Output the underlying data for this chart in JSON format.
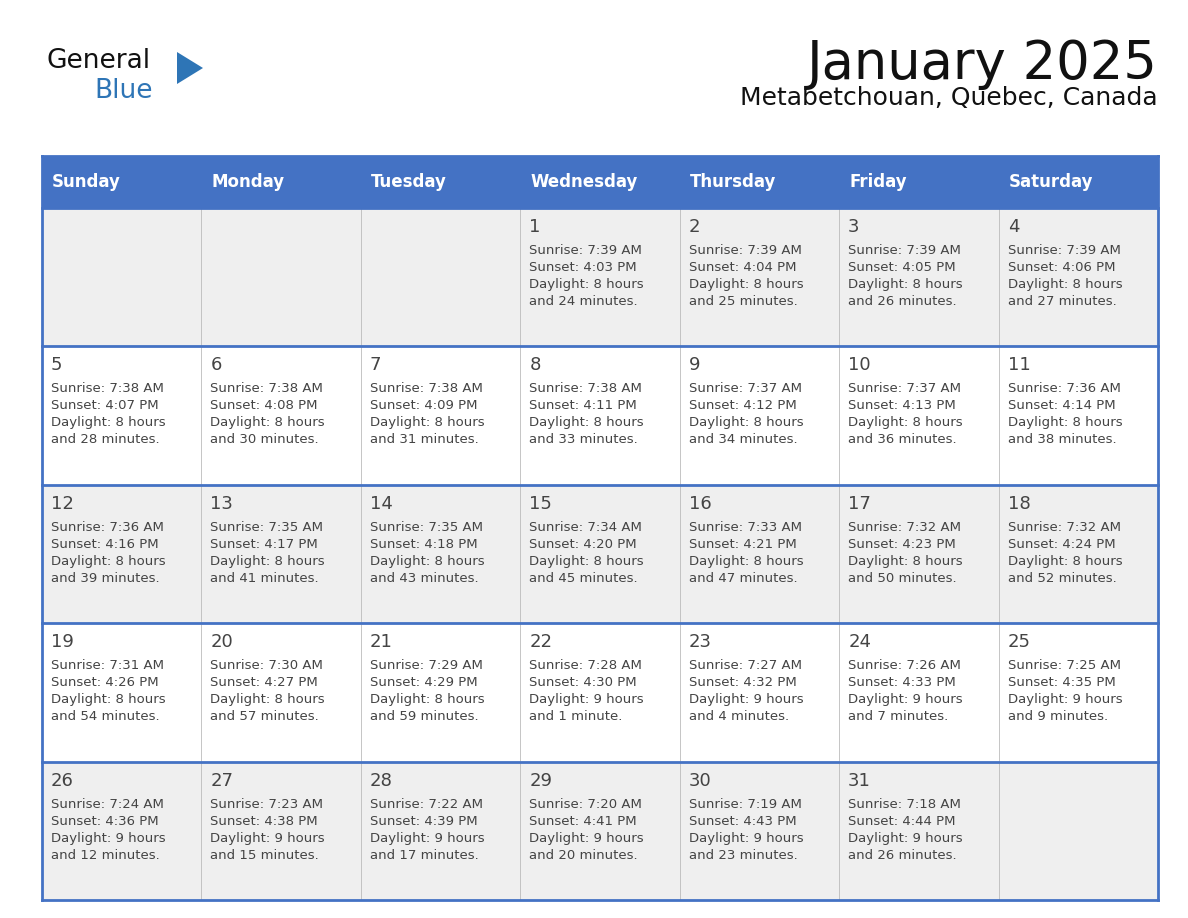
{
  "title": "January 2025",
  "subtitle": "Metabetchouan, Quebec, Canada",
  "days_of_week": [
    "Sunday",
    "Monday",
    "Tuesday",
    "Wednesday",
    "Thursday",
    "Friday",
    "Saturday"
  ],
  "header_bg": "#4472C4",
  "header_text": "#FFFFFF",
  "row_bg_odd": "#EFEFEF",
  "row_bg_even": "#FFFFFF",
  "separator_color": "#4472C4",
  "text_color": "#444444",
  "title_color": "#111111",
  "logo_general_color": "#111111",
  "logo_blue_color": "#2E75B6",
  "calendar_data": [
    {
      "day": 1,
      "col": 3,
      "row": 0,
      "sunrise": "7:39 AM",
      "sunset": "4:03 PM",
      "daylight_h": "8 hours",
      "daylight_m": "and 24 minutes."
    },
    {
      "day": 2,
      "col": 4,
      "row": 0,
      "sunrise": "7:39 AM",
      "sunset": "4:04 PM",
      "daylight_h": "8 hours",
      "daylight_m": "and 25 minutes."
    },
    {
      "day": 3,
      "col": 5,
      "row": 0,
      "sunrise": "7:39 AM",
      "sunset": "4:05 PM",
      "daylight_h": "8 hours",
      "daylight_m": "and 26 minutes."
    },
    {
      "day": 4,
      "col": 6,
      "row": 0,
      "sunrise": "7:39 AM",
      "sunset": "4:06 PM",
      "daylight_h": "8 hours",
      "daylight_m": "and 27 minutes."
    },
    {
      "day": 5,
      "col": 0,
      "row": 1,
      "sunrise": "7:38 AM",
      "sunset": "4:07 PM",
      "daylight_h": "8 hours",
      "daylight_m": "and 28 minutes."
    },
    {
      "day": 6,
      "col": 1,
      "row": 1,
      "sunrise": "7:38 AM",
      "sunset": "4:08 PM",
      "daylight_h": "8 hours",
      "daylight_m": "and 30 minutes."
    },
    {
      "day": 7,
      "col": 2,
      "row": 1,
      "sunrise": "7:38 AM",
      "sunset": "4:09 PM",
      "daylight_h": "8 hours",
      "daylight_m": "and 31 minutes."
    },
    {
      "day": 8,
      "col": 3,
      "row": 1,
      "sunrise": "7:38 AM",
      "sunset": "4:11 PM",
      "daylight_h": "8 hours",
      "daylight_m": "and 33 minutes."
    },
    {
      "day": 9,
      "col": 4,
      "row": 1,
      "sunrise": "7:37 AM",
      "sunset": "4:12 PM",
      "daylight_h": "8 hours",
      "daylight_m": "and 34 minutes."
    },
    {
      "day": 10,
      "col": 5,
      "row": 1,
      "sunrise": "7:37 AM",
      "sunset": "4:13 PM",
      "daylight_h": "8 hours",
      "daylight_m": "and 36 minutes."
    },
    {
      "day": 11,
      "col": 6,
      "row": 1,
      "sunrise": "7:36 AM",
      "sunset": "4:14 PM",
      "daylight_h": "8 hours",
      "daylight_m": "and 38 minutes."
    },
    {
      "day": 12,
      "col": 0,
      "row": 2,
      "sunrise": "7:36 AM",
      "sunset": "4:16 PM",
      "daylight_h": "8 hours",
      "daylight_m": "and 39 minutes."
    },
    {
      "day": 13,
      "col": 1,
      "row": 2,
      "sunrise": "7:35 AM",
      "sunset": "4:17 PM",
      "daylight_h": "8 hours",
      "daylight_m": "and 41 minutes."
    },
    {
      "day": 14,
      "col": 2,
      "row": 2,
      "sunrise": "7:35 AM",
      "sunset": "4:18 PM",
      "daylight_h": "8 hours",
      "daylight_m": "and 43 minutes."
    },
    {
      "day": 15,
      "col": 3,
      "row": 2,
      "sunrise": "7:34 AM",
      "sunset": "4:20 PM",
      "daylight_h": "8 hours",
      "daylight_m": "and 45 minutes."
    },
    {
      "day": 16,
      "col": 4,
      "row": 2,
      "sunrise": "7:33 AM",
      "sunset": "4:21 PM",
      "daylight_h": "8 hours",
      "daylight_m": "and 47 minutes."
    },
    {
      "day": 17,
      "col": 5,
      "row": 2,
      "sunrise": "7:32 AM",
      "sunset": "4:23 PM",
      "daylight_h": "8 hours",
      "daylight_m": "and 50 minutes."
    },
    {
      "day": 18,
      "col": 6,
      "row": 2,
      "sunrise": "7:32 AM",
      "sunset": "4:24 PM",
      "daylight_h": "8 hours",
      "daylight_m": "and 52 minutes."
    },
    {
      "day": 19,
      "col": 0,
      "row": 3,
      "sunrise": "7:31 AM",
      "sunset": "4:26 PM",
      "daylight_h": "8 hours",
      "daylight_m": "and 54 minutes."
    },
    {
      "day": 20,
      "col": 1,
      "row": 3,
      "sunrise": "7:30 AM",
      "sunset": "4:27 PM",
      "daylight_h": "8 hours",
      "daylight_m": "and 57 minutes."
    },
    {
      "day": 21,
      "col": 2,
      "row": 3,
      "sunrise": "7:29 AM",
      "sunset": "4:29 PM",
      "daylight_h": "8 hours",
      "daylight_m": "and 59 minutes."
    },
    {
      "day": 22,
      "col": 3,
      "row": 3,
      "sunrise": "7:28 AM",
      "sunset": "4:30 PM",
      "daylight_h": "9 hours",
      "daylight_m": "and 1 minute."
    },
    {
      "day": 23,
      "col": 4,
      "row": 3,
      "sunrise": "7:27 AM",
      "sunset": "4:32 PM",
      "daylight_h": "9 hours",
      "daylight_m": "and 4 minutes."
    },
    {
      "day": 24,
      "col": 5,
      "row": 3,
      "sunrise": "7:26 AM",
      "sunset": "4:33 PM",
      "daylight_h": "9 hours",
      "daylight_m": "and 7 minutes."
    },
    {
      "day": 25,
      "col": 6,
      "row": 3,
      "sunrise": "7:25 AM",
      "sunset": "4:35 PM",
      "daylight_h": "9 hours",
      "daylight_m": "and 9 minutes."
    },
    {
      "day": 26,
      "col": 0,
      "row": 4,
      "sunrise": "7:24 AM",
      "sunset": "4:36 PM",
      "daylight_h": "9 hours",
      "daylight_m": "and 12 minutes."
    },
    {
      "day": 27,
      "col": 1,
      "row": 4,
      "sunrise": "7:23 AM",
      "sunset": "4:38 PM",
      "daylight_h": "9 hours",
      "daylight_m": "and 15 minutes."
    },
    {
      "day": 28,
      "col": 2,
      "row": 4,
      "sunrise": "7:22 AM",
      "sunset": "4:39 PM",
      "daylight_h": "9 hours",
      "daylight_m": "and 17 minutes."
    },
    {
      "day": 29,
      "col": 3,
      "row": 4,
      "sunrise": "7:20 AM",
      "sunset": "4:41 PM",
      "daylight_h": "9 hours",
      "daylight_m": "and 20 minutes."
    },
    {
      "day": 30,
      "col": 4,
      "row": 4,
      "sunrise": "7:19 AM",
      "sunset": "4:43 PM",
      "daylight_h": "9 hours",
      "daylight_m": "and 23 minutes."
    },
    {
      "day": 31,
      "col": 5,
      "row": 4,
      "sunrise": "7:18 AM",
      "sunset": "4:44 PM",
      "daylight_h": "9 hours",
      "daylight_m": "and 26 minutes."
    }
  ]
}
